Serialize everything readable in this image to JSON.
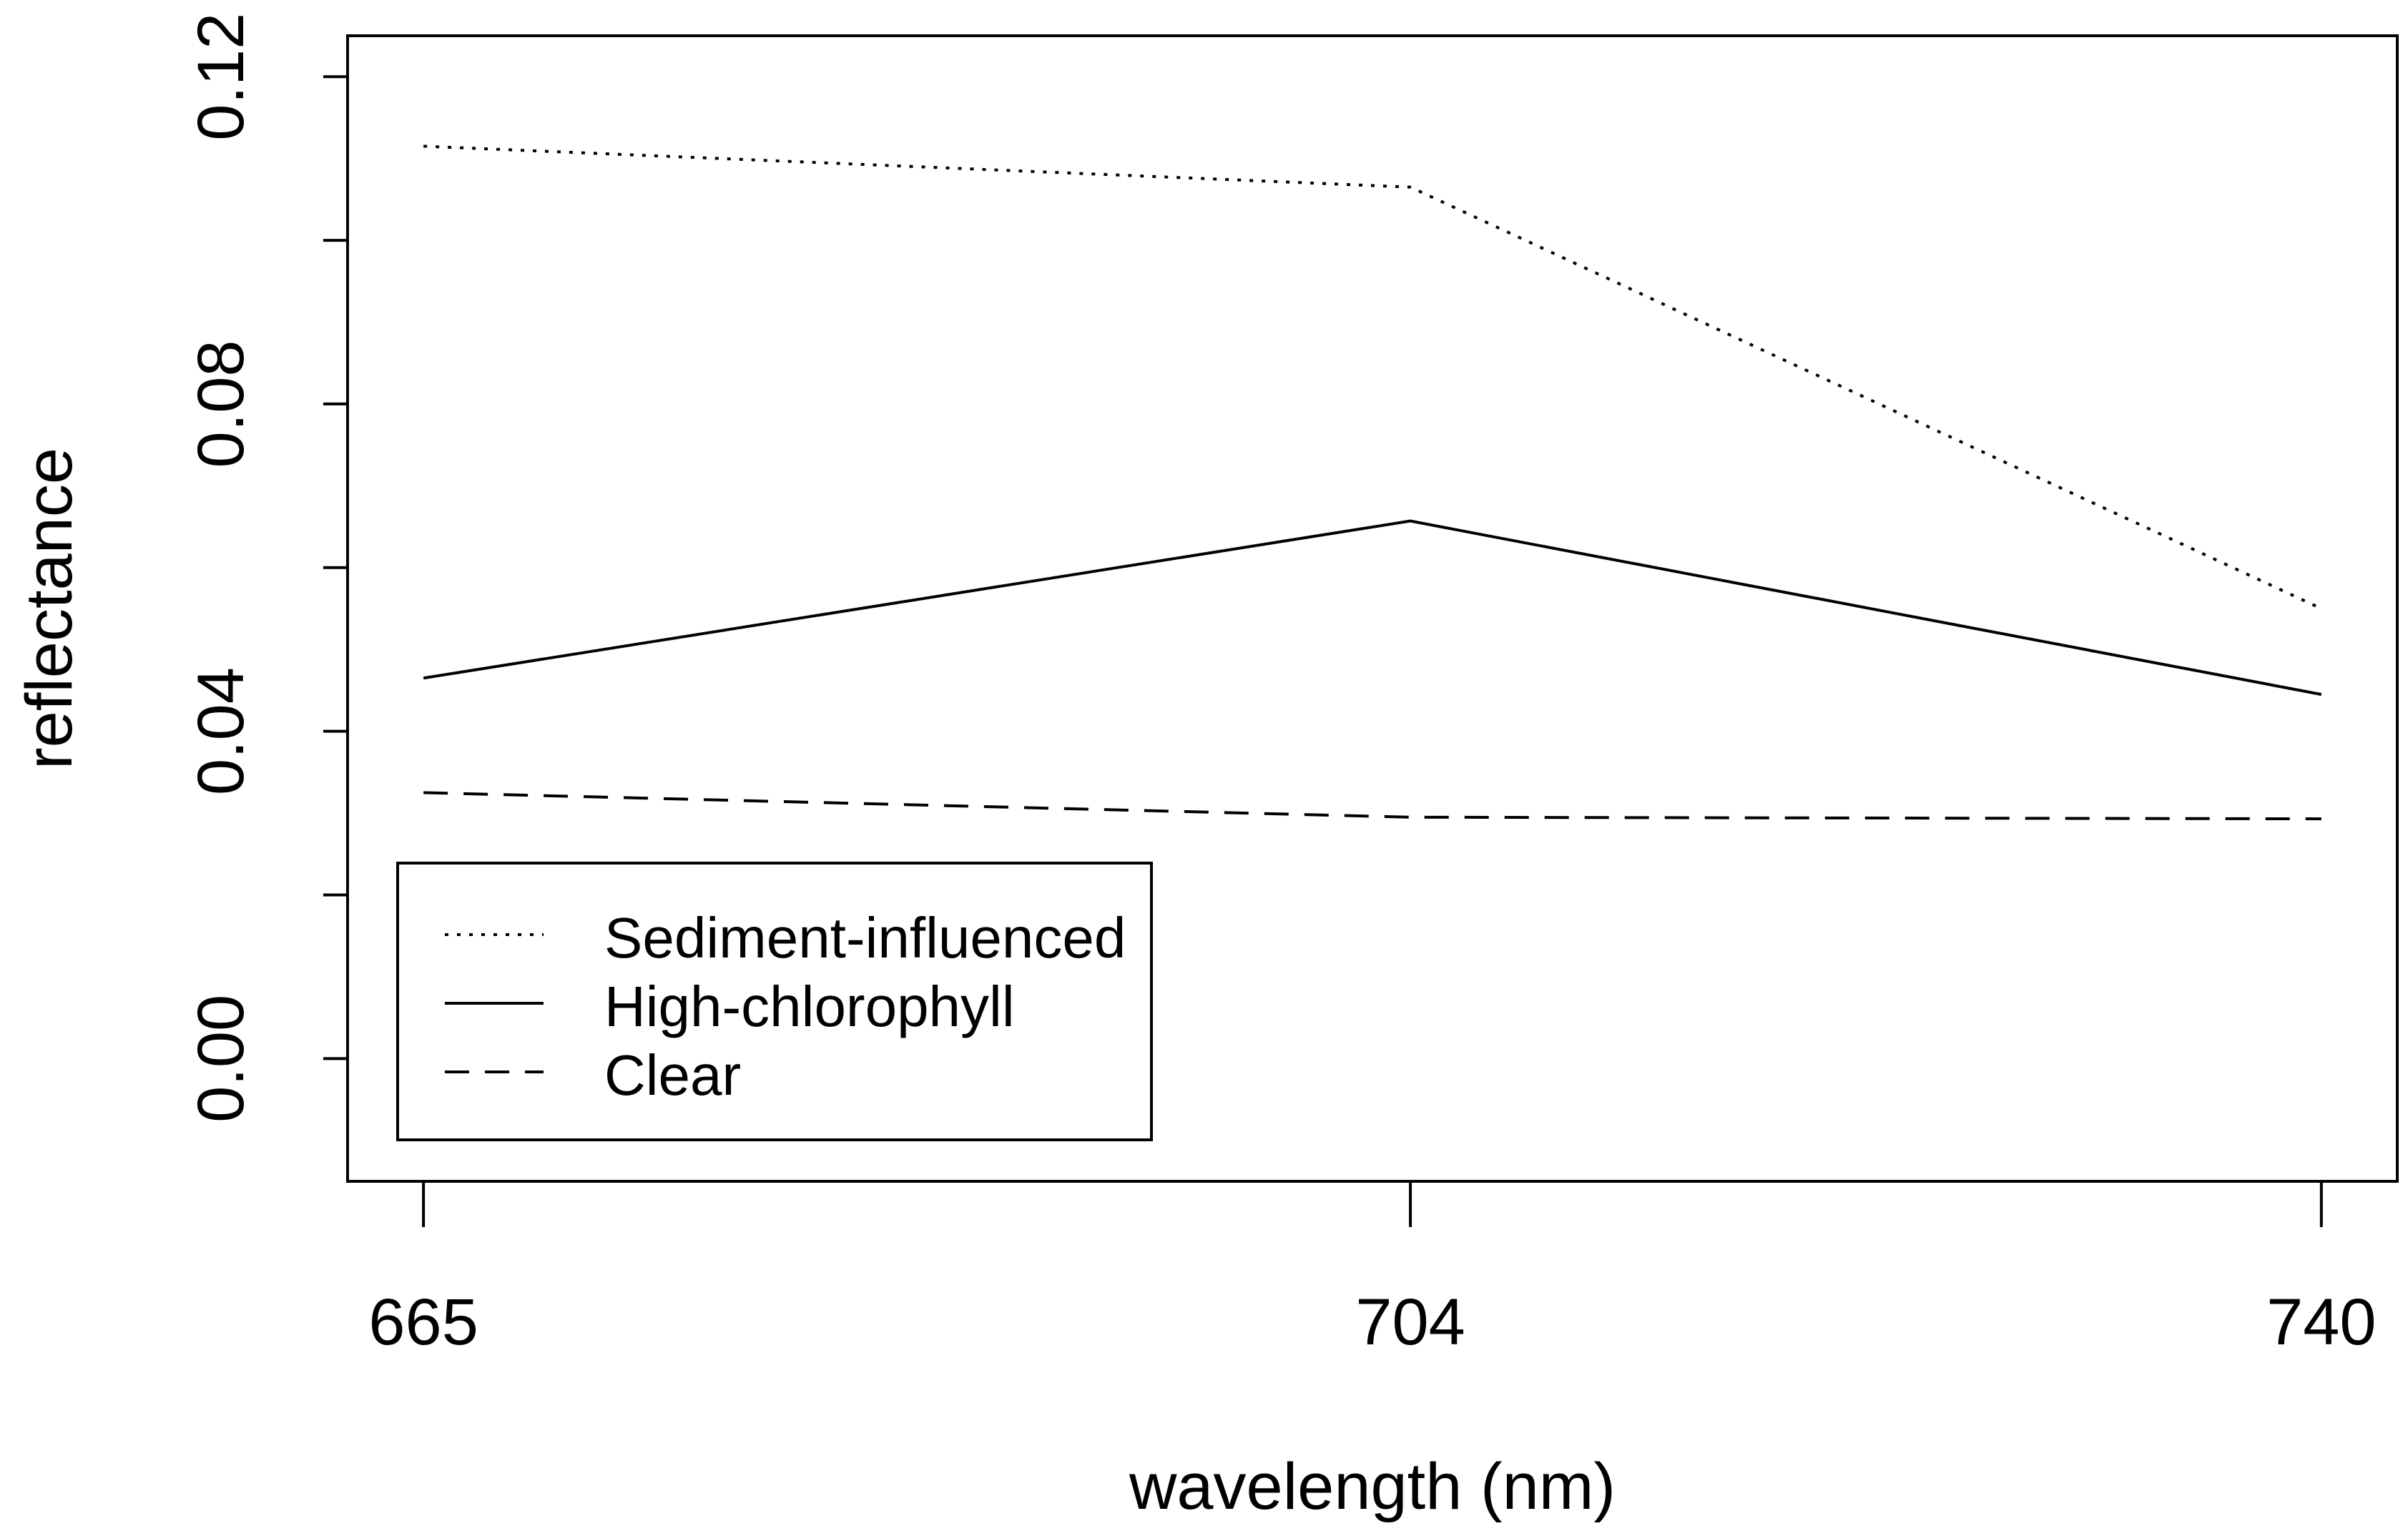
{
  "chart_data": {
    "type": "line",
    "xlabel": "wavelength (nm)",
    "ylabel": "reflectance",
    "categories": [
      "665",
      "704",
      "740"
    ],
    "x": [
      665,
      704,
      740
    ],
    "xlim": [
      662,
      743
    ],
    "ylim": [
      -0.015,
      0.125
    ],
    "yticks": [
      0.0,
      0.04,
      0.08,
      0.12
    ],
    "ytick_labels": [
      "0.00",
      "0.04",
      "0.08",
      "0.12"
    ],
    "minor_yticks": [
      0.02,
      0.06,
      0.1
    ],
    "grid": false,
    "legend_position": "bottom-left",
    "series": [
      {
        "name": "Sediment-influenced",
        "style": "dotted",
        "values": [
          0.1115,
          0.1065,
          0.055
        ]
      },
      {
        "name": "High-chlorophyll",
        "style": "solid",
        "values": [
          0.0465,
          0.0657,
          0.0445
        ]
      },
      {
        "name": "Clear",
        "style": "dashed",
        "values": [
          0.0325,
          0.0295,
          0.0293
        ]
      }
    ],
    "colors": {
      "line": "#000000",
      "background": "#ffffff"
    }
  }
}
